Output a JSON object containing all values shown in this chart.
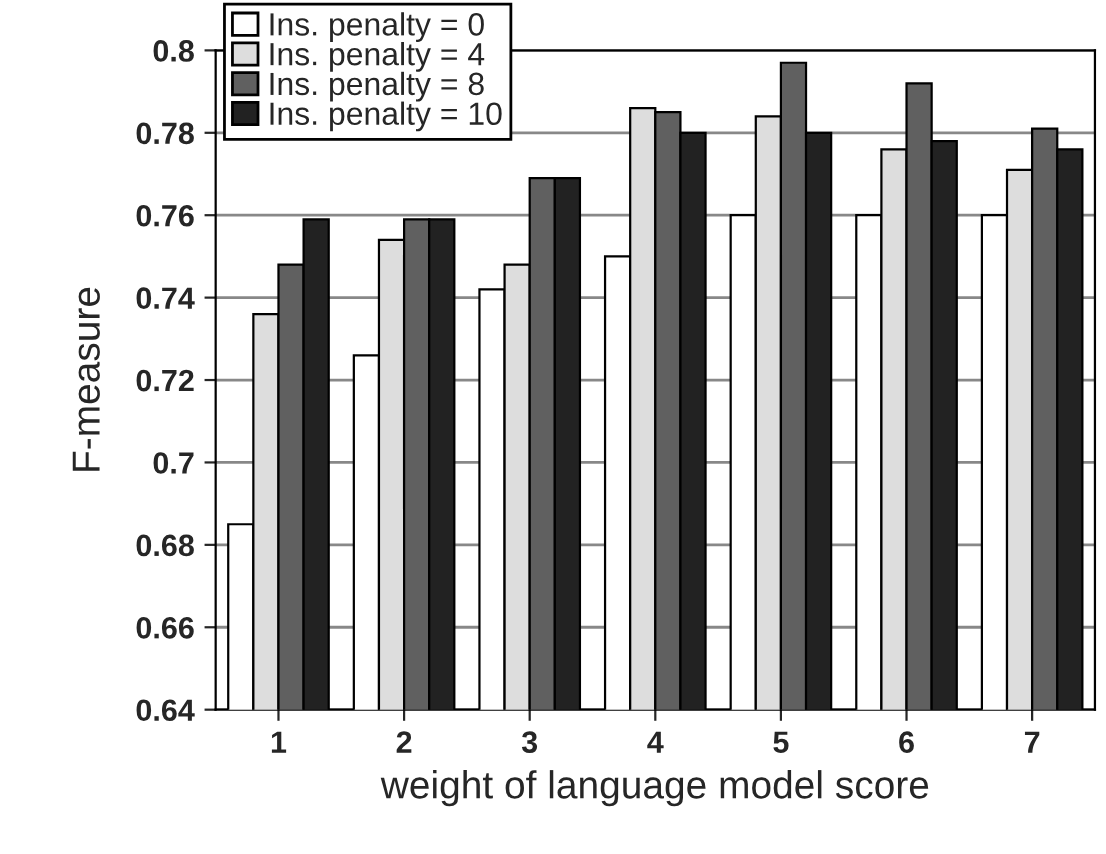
{
  "chart_data": {
    "type": "bar",
    "xlabel": "weight of language model score",
    "ylabel": "F-measure",
    "categories": [
      "1",
      "2",
      "3",
      "4",
      "5",
      "6",
      "7"
    ],
    "series": [
      {
        "name": "Ins. penalty = 0",
        "color": "#ffffff",
        "values": [
          0.685,
          0.726,
          0.742,
          0.75,
          0.76,
          0.76,
          0.76
        ]
      },
      {
        "name": "Ins. penalty = 4",
        "color": "#dddddd",
        "values": [
          0.736,
          0.754,
          0.748,
          0.786,
          0.784,
          0.776,
          0.771
        ]
      },
      {
        "name": "Ins. penalty = 8",
        "color": "#606060",
        "values": [
          0.748,
          0.759,
          0.769,
          0.785,
          0.797,
          0.792,
          0.781
        ]
      },
      {
        "name": "Ins. penalty = 10",
        "color": "#222222",
        "values": [
          0.759,
          0.759,
          0.769,
          0.78,
          0.78,
          0.778,
          0.776
        ]
      }
    ],
    "ylim": [
      0.64,
      0.8
    ],
    "yticks": [
      0.64,
      0.66,
      0.68,
      0.7,
      0.72,
      0.74,
      0.76,
      0.78,
      0.8
    ],
    "grid": "y",
    "legend": "top left"
  }
}
